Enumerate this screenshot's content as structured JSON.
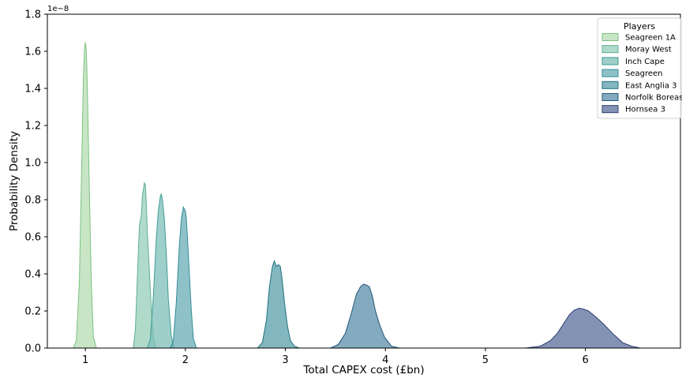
{
  "chart_data": {
    "type": "area",
    "title": "",
    "xlabel": "Total CAPEX cost (£bn)",
    "ylabel": "Probability Density",
    "y_offset_text": "1e−8",
    "xlim": [
      0.62,
      6.95
    ],
    "ylim": [
      0,
      1.8
    ],
    "x_ticks": [
      1,
      2,
      3,
      4,
      5,
      6
    ],
    "y_ticks": [
      0.0,
      0.2,
      0.4,
      0.6,
      0.8,
      1.0,
      1.2,
      1.4,
      1.6,
      1.8
    ],
    "y_tick_labels": [
      "0.0",
      "0.2",
      "0.4",
      "0.6",
      "0.8",
      "1.0",
      "1.2",
      "1.4",
      "1.6",
      "1.8"
    ],
    "grid": false,
    "legend": {
      "title": "Players",
      "placement": "top-right"
    },
    "series": [
      {
        "name": "Seagreen 1A",
        "color": "#b6dcb3",
        "edge": "#7cc27e",
        "x": [
          0.88,
          0.91,
          0.94,
          0.96,
          0.98,
          0.99,
          1.0,
          1.01,
          1.02,
          1.04,
          1.06,
          1.08,
          1.11
        ],
        "y": [
          0.0,
          0.04,
          0.35,
          0.9,
          1.45,
          1.6,
          1.65,
          1.6,
          1.4,
          0.85,
          0.35,
          0.06,
          0.0
        ]
      },
      {
        "name": "Moray West",
        "color": "#96cdb8",
        "edge": "#5fae96",
        "x": [
          1.48,
          1.5,
          1.52,
          1.54,
          1.56,
          1.57,
          1.59,
          1.6,
          1.61,
          1.62,
          1.64,
          1.66,
          1.68,
          1.7,
          1.72
        ],
        "y": [
          0.0,
          0.1,
          0.38,
          0.66,
          0.72,
          0.82,
          0.89,
          0.88,
          0.78,
          0.62,
          0.42,
          0.2,
          0.06,
          0.01,
          0.0
        ]
      },
      {
        "name": "Inch Cape",
        "color": "#7dbfb9",
        "edge": "#3f9c93",
        "x": [
          1.62,
          1.65,
          1.68,
          1.71,
          1.73,
          1.75,
          1.76,
          1.77,
          1.79,
          1.81,
          1.83,
          1.86,
          1.89
        ],
        "y": [
          0.0,
          0.05,
          0.28,
          0.6,
          0.74,
          0.82,
          0.83,
          0.8,
          0.7,
          0.5,
          0.26,
          0.06,
          0.0
        ]
      },
      {
        "name": "Seagreen",
        "color": "#6aadb5",
        "edge": "#2f8a98",
        "x": [
          1.85,
          1.88,
          1.91,
          1.94,
          1.96,
          1.98,
          2.0,
          2.01,
          2.02,
          2.04,
          2.06,
          2.08,
          2.11
        ],
        "y": [
          0.0,
          0.04,
          0.25,
          0.55,
          0.7,
          0.76,
          0.74,
          0.7,
          0.6,
          0.4,
          0.2,
          0.05,
          0.0
        ]
      },
      {
        "name": "East Anglia 3",
        "color": "#589fab",
        "edge": "#24707f",
        "x": [
          2.72,
          2.77,
          2.81,
          2.84,
          2.87,
          2.89,
          2.91,
          2.93,
          2.95,
          2.97,
          2.99,
          3.02,
          3.05,
          3.09,
          3.14
        ],
        "y": [
          0.0,
          0.03,
          0.15,
          0.33,
          0.44,
          0.47,
          0.44,
          0.45,
          0.44,
          0.36,
          0.25,
          0.12,
          0.04,
          0.01,
          0.0
        ]
      },
      {
        "name": "Norfolk Boreas",
        "color": "#5b8eaa",
        "edge": "#23587a",
        "x": [
          3.45,
          3.53,
          3.6,
          3.66,
          3.71,
          3.75,
          3.78,
          3.81,
          3.84,
          3.87,
          3.9,
          3.94,
          3.99,
          4.06,
          4.14
        ],
        "y": [
          0.0,
          0.02,
          0.08,
          0.19,
          0.29,
          0.33,
          0.345,
          0.34,
          0.33,
          0.28,
          0.2,
          0.13,
          0.06,
          0.01,
          0.0
        ]
      },
      {
        "name": "Hornsea 3",
        "color": "#5a6e9c",
        "edge": "#2e3d6b",
        "x": [
          5.4,
          5.55,
          5.65,
          5.72,
          5.78,
          5.84,
          5.89,
          5.94,
          5.98,
          6.03,
          6.1,
          6.18,
          6.27,
          6.37,
          6.46,
          6.55
        ],
        "y": [
          0.0,
          0.01,
          0.04,
          0.08,
          0.13,
          0.18,
          0.205,
          0.215,
          0.21,
          0.2,
          0.17,
          0.13,
          0.08,
          0.03,
          0.01,
          0.0
        ]
      }
    ]
  }
}
